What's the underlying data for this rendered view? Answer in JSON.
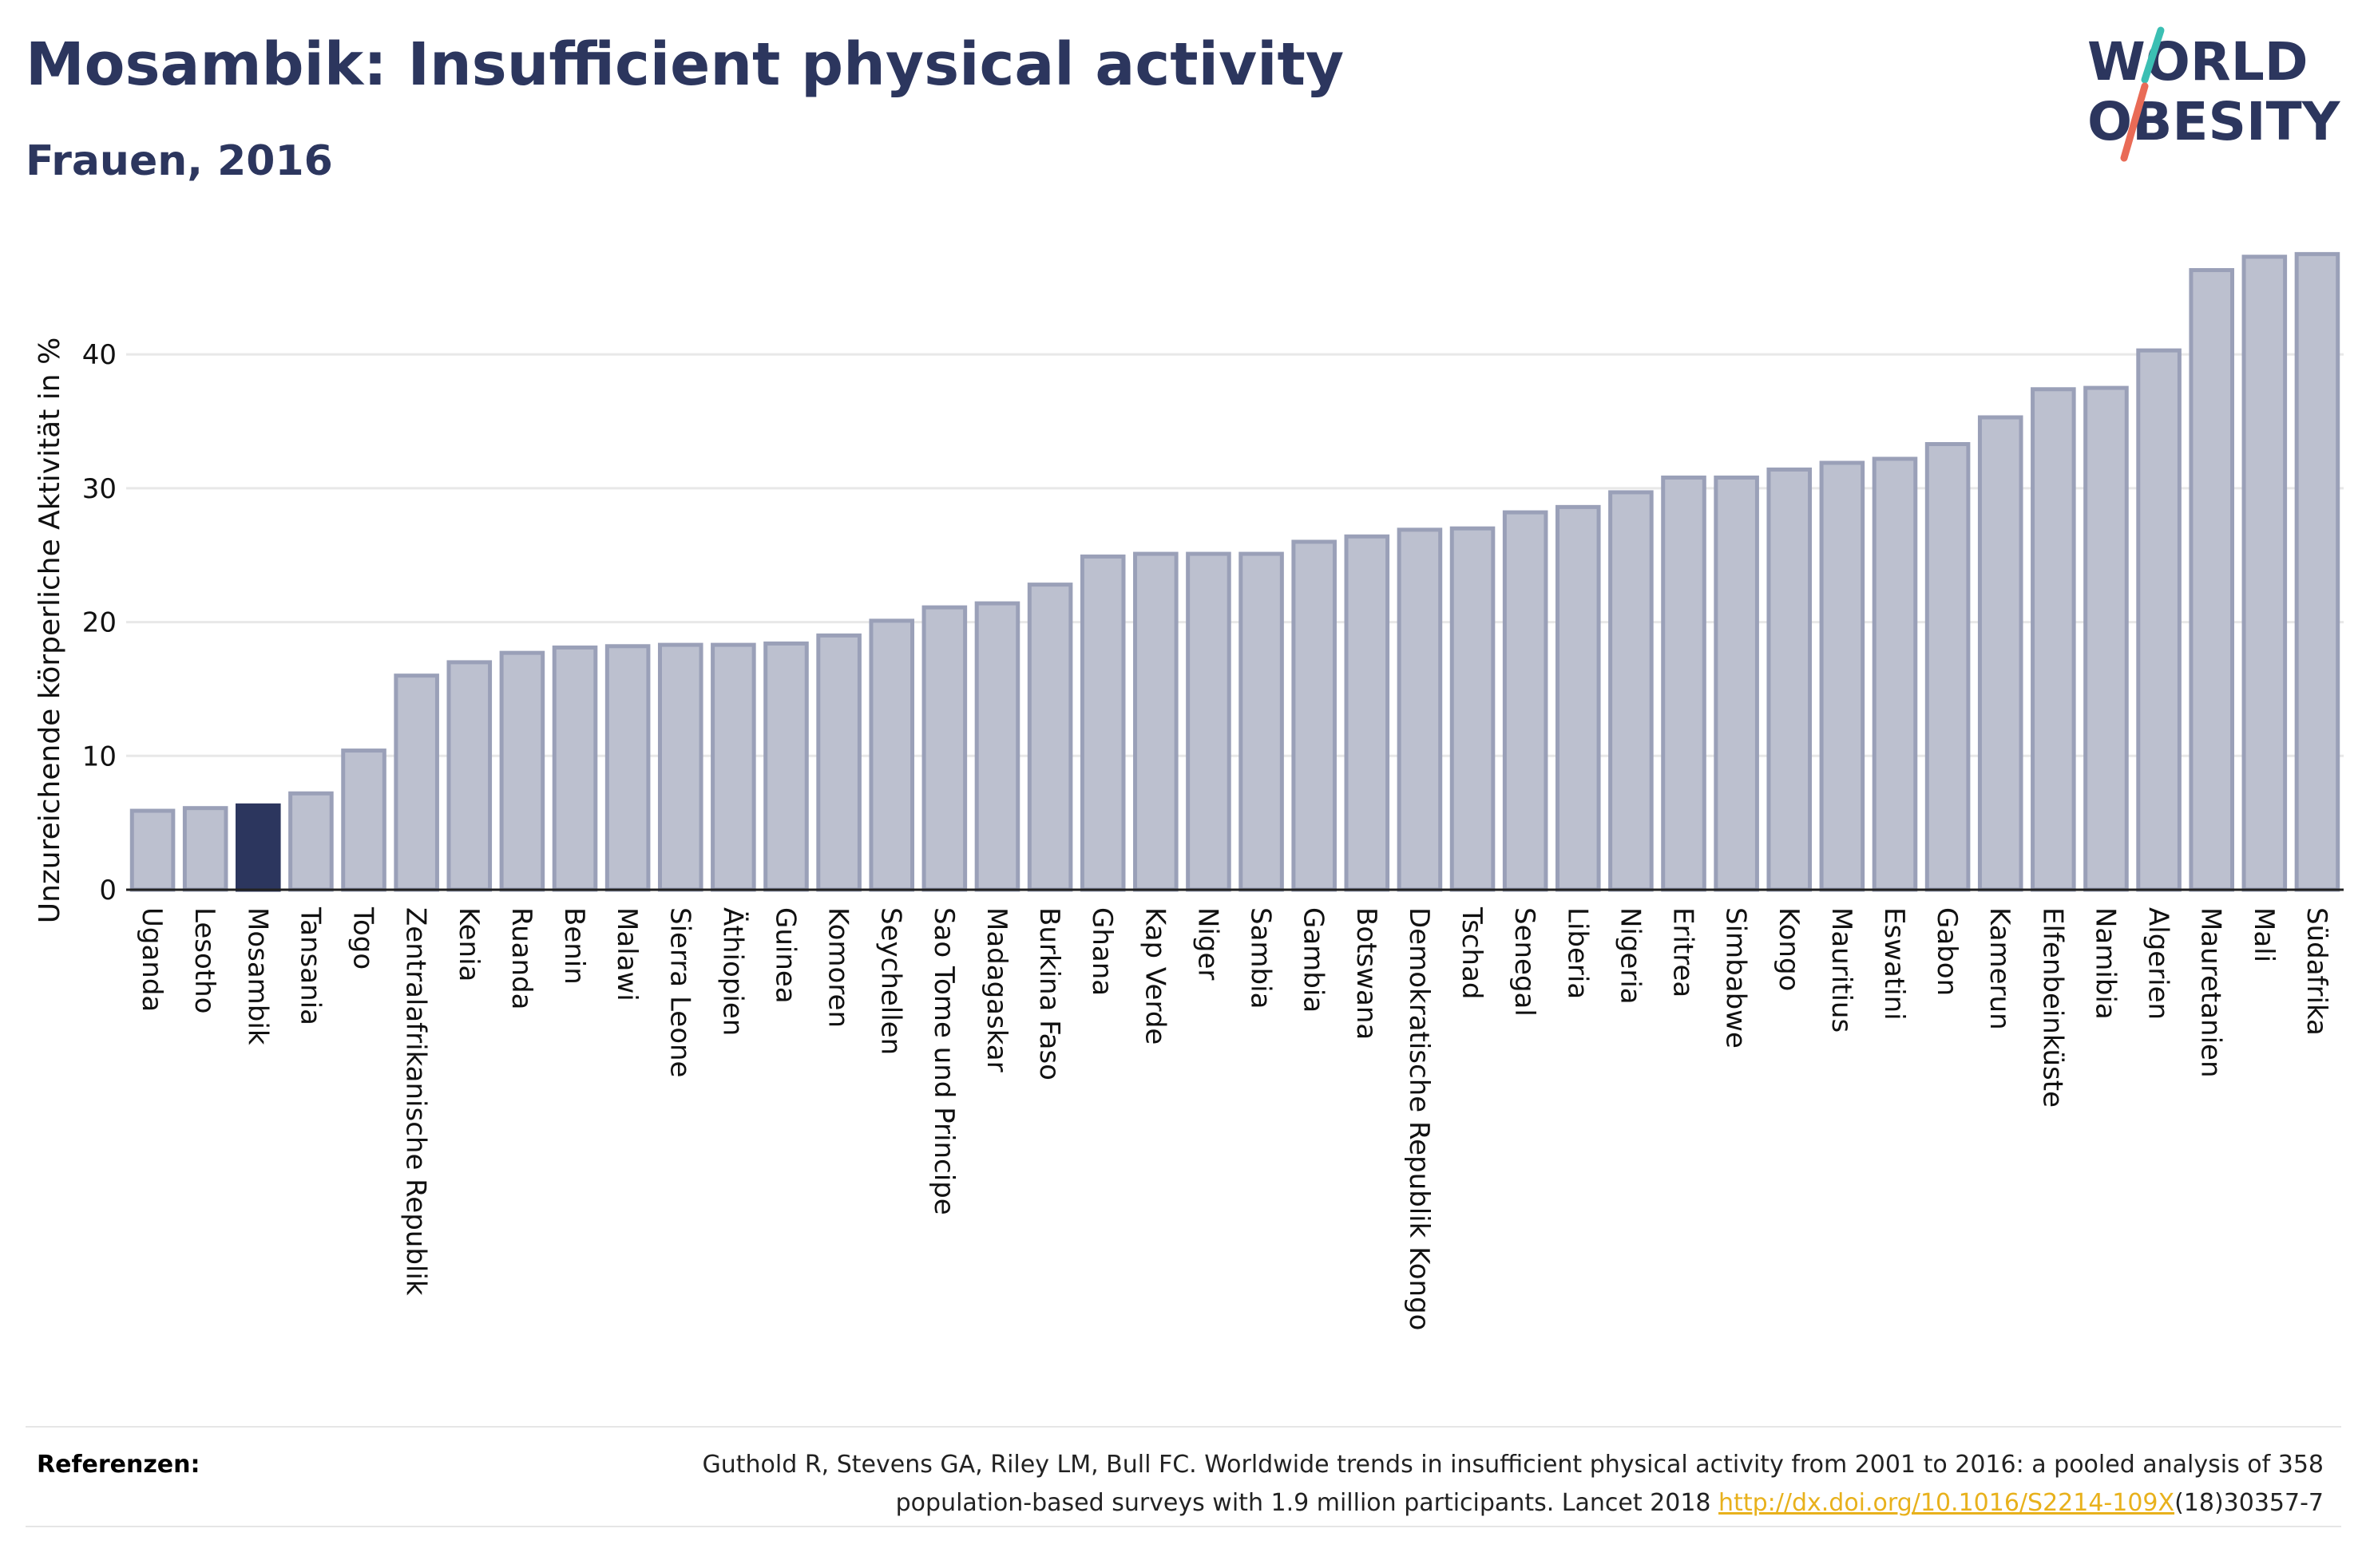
{
  "title": "Mosambik: Insufficient physical activity",
  "subtitle": "Frauen, 2016",
  "logo": {
    "line1": "WORLD",
    "line2": "OBESITY"
  },
  "colors": {
    "title": "#2c365e",
    "bar": "#bcc0cf",
    "bar_edge": "#9aa0b8",
    "highlight": "#2c365e",
    "link": "#e8b11c",
    "logo_teal": "#3bbfb3",
    "logo_coral": "#e96b56"
  },
  "chart_data": {
    "type": "bar",
    "ylabel": "Unzureichende körperliche Aktivität in %",
    "ylim": [
      0,
      48
    ],
    "yticks": [
      0,
      10,
      20,
      30,
      40
    ],
    "grid": true,
    "highlight": "Mosambik",
    "categories": [
      "Uganda",
      "Lesotho",
      "Mosambik",
      "Tansania",
      "Togo",
      "Zentralafrikanische Republik",
      "Kenia",
      "Ruanda",
      "Benin",
      "Malawi",
      "Sierra Leone",
      "Äthiopien",
      "Guinea",
      "Komoren",
      "Seychellen",
      "Sao Tome und Principe",
      "Madagaskar",
      "Burkina Faso",
      "Ghana",
      "Kap Verde",
      "Niger",
      "Sambia",
      "Gambia",
      "Botswana",
      "Demokratische Republik Kongo",
      "Tschad",
      "Senegal",
      "Liberia",
      "Nigeria",
      "Eritrea",
      "Simbabwe",
      "Kongo",
      "Mauritius",
      "Eswatini",
      "Gabon",
      "Kamerun",
      "Elfenbeinküste",
      "Namibia",
      "Algerien",
      "Mauretanien",
      "Mali",
      "Südafrika"
    ],
    "values": [
      5.9,
      6.1,
      6.3,
      7.2,
      10.4,
      16.0,
      17.0,
      17.7,
      18.1,
      18.2,
      18.3,
      18.3,
      18.4,
      19.0,
      20.1,
      21.1,
      21.4,
      22.8,
      24.9,
      25.1,
      25.1,
      25.1,
      26.0,
      26.4,
      26.9,
      27.0,
      28.2,
      28.6,
      29.7,
      30.8,
      30.8,
      31.4,
      31.9,
      32.2,
      33.3,
      35.3,
      37.4,
      37.5,
      40.3,
      46.3,
      47.3,
      47.5
    ]
  },
  "references": {
    "label": "Referenzen:",
    "text_line1": "Guthold R, Stevens GA, Riley LM, Bull FC. Worldwide trends in insufficient physical activity from 2001 to 2016: a pooled analysis of 358",
    "text_line2_pre": "population-based surveys with 1.9 million participants. Lancet 2018 ",
    "link": "http://dx.doi.org/10.1016/S2214-109X",
    "text_line2_post": "(18)30357-7"
  }
}
